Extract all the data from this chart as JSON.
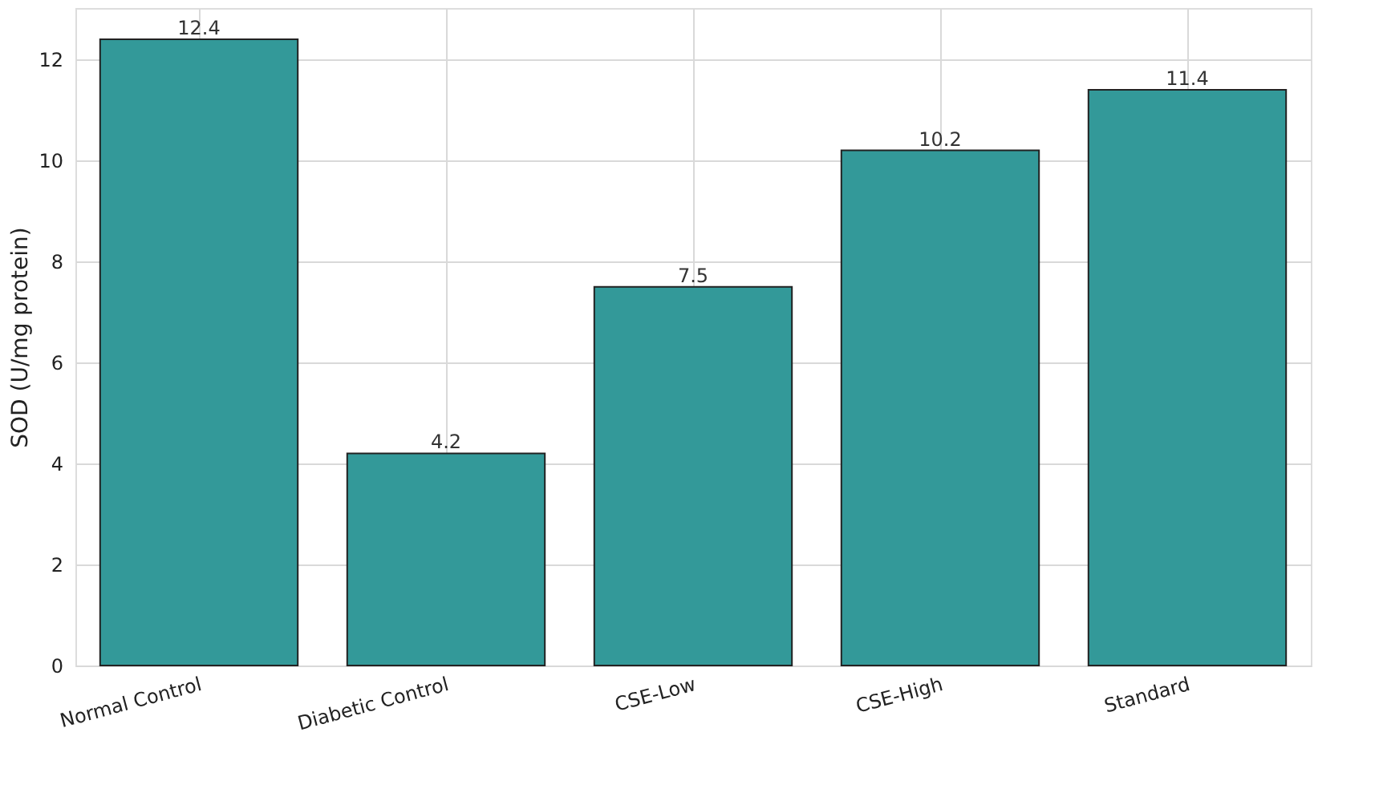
{
  "chart_data": {
    "type": "bar",
    "ylabel": "SOD (U/mg protein)",
    "categories": [
      "Normal Control",
      "Diabetic Control",
      "CSE-Low",
      "CSE-High",
      "Standard"
    ],
    "values": [
      12.4,
      4.2,
      7.5,
      10.2,
      11.4
    ],
    "color": "#339999",
    "ylim": [
      0,
      13.02
    ],
    "yticks": [
      0,
      2,
      4,
      6,
      8,
      10,
      12
    ],
    "grid": true,
    "data_labels": true
  }
}
